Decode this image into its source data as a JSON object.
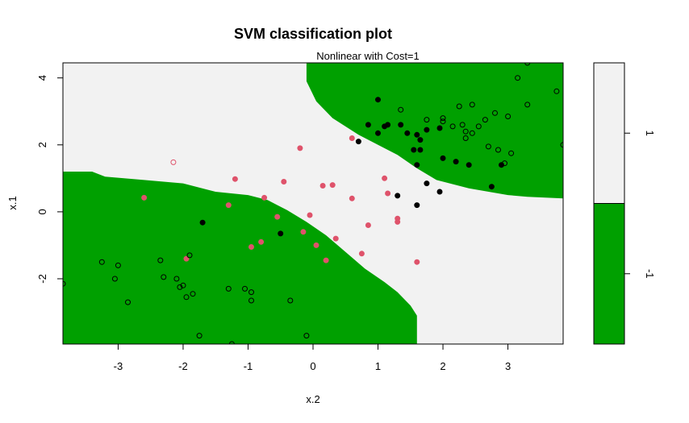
{
  "chart_data": {
    "type": "scatter",
    "title": "SVM classification plot",
    "subtitle": "Nonlinear with Cost=1",
    "xlabel": "x.2",
    "ylabel": "x.1",
    "xlim": [
      -3.85,
      3.85
    ],
    "ylim": [
      -3.95,
      4.45
    ],
    "x_ticks": [
      -3,
      -2,
      -1,
      0,
      1,
      2,
      3
    ],
    "y_ticks": [
      -2,
      0,
      2,
      4
    ],
    "region_colors": {
      "class_1": "#f2f2f2",
      "class_neg1": "#00a000"
    },
    "legend": {
      "position": "right",
      "entries": [
        {
          "label": "1",
          "color": "#f2f2f2"
        },
        {
          "label": "-1",
          "color": "#00a000"
        }
      ]
    },
    "decision_region": {
      "description": "class_1 region is polygon below, everything else is class -1",
      "class_1_polygon": [
        [
          -3.85,
          1.2
        ],
        [
          -3.4,
          1.2
        ],
        [
          -3.2,
          1.05
        ],
        [
          -2.6,
          0.95
        ],
        [
          -2.0,
          0.85
        ],
        [
          -1.5,
          0.6
        ],
        [
          -1.0,
          0.5
        ],
        [
          -0.7,
          0.35
        ],
        [
          -0.4,
          0.05
        ],
        [
          -0.1,
          -0.3
        ],
        [
          0.2,
          -0.7
        ],
        [
          0.5,
          -1.2
        ],
        [
          0.8,
          -1.7
        ],
        [
          1.1,
          -2.1
        ],
        [
          1.3,
          -2.4
        ],
        [
          1.5,
          -2.8
        ],
        [
          1.6,
          -3.1
        ],
        [
          1.6,
          -3.95
        ],
        [
          3.85,
          -3.95
        ],
        [
          3.85,
          0.4
        ],
        [
          3.3,
          0.45
        ],
        [
          3.0,
          0.5
        ],
        [
          2.4,
          0.7
        ],
        [
          1.9,
          0.95
        ],
        [
          1.6,
          1.3
        ],
        [
          1.3,
          1.7
        ],
        [
          1.0,
          2.0
        ],
        [
          0.7,
          2.3
        ],
        [
          0.3,
          2.8
        ],
        [
          0.05,
          3.3
        ],
        [
          -0.1,
          3.9
        ],
        [
          -0.1,
          4.45
        ],
        [
          -3.85,
          4.45
        ]
      ]
    },
    "series": [
      {
        "name": "support vectors class 1",
        "marker": "filled",
        "color": "#df536b",
        "points": [
          [
            -2.6,
            0.42
          ],
          [
            -1.2,
            0.98
          ],
          [
            -1.3,
            0.2
          ],
          [
            -0.75,
            0.42
          ],
          [
            -0.55,
            -0.15
          ],
          [
            -0.45,
            0.9
          ],
          [
            -0.2,
            1.9
          ],
          [
            -0.15,
            -0.6
          ],
          [
            -0.05,
            -0.1
          ],
          [
            0.15,
            0.78
          ],
          [
            0.3,
            0.8
          ],
          [
            0.35,
            -0.8
          ],
          [
            0.6,
            2.2
          ],
          [
            0.6,
            0.4
          ],
          [
            0.75,
            -1.25
          ],
          [
            0.85,
            -0.4
          ],
          [
            1.1,
            1.0
          ],
          [
            1.15,
            0.55
          ],
          [
            1.3,
            -0.2
          ],
          [
            1.3,
            -0.3
          ],
          [
            1.6,
            -1.5
          ],
          [
            -0.8,
            -0.9
          ],
          [
            -0.95,
            -1.05
          ],
          [
            -1.95,
            -1.4
          ],
          [
            0.05,
            -1.0
          ],
          [
            0.2,
            -1.45
          ]
        ]
      },
      {
        "name": "data class 1",
        "marker": "open",
        "color": "#df536b",
        "points": [
          [
            -2.15,
            1.48
          ]
        ]
      },
      {
        "name": "support vectors class -1",
        "marker": "filled",
        "color": "#000000",
        "points": [
          [
            -1.7,
            -0.32
          ],
          [
            -0.5,
            -0.65
          ],
          [
            0.7,
            2.1
          ],
          [
            0.85,
            2.6
          ],
          [
            1.0,
            2.35
          ],
          [
            1.0,
            3.35
          ],
          [
            1.1,
            2.55
          ],
          [
            1.15,
            2.6
          ],
          [
            1.35,
            2.6
          ],
          [
            1.45,
            2.35
          ],
          [
            1.55,
            1.85
          ],
          [
            1.6,
            2.3
          ],
          [
            1.65,
            2.15
          ],
          [
            1.65,
            1.85
          ],
          [
            1.75,
            2.45
          ],
          [
            1.6,
            1.4
          ],
          [
            1.75,
            0.85
          ],
          [
            1.95,
            0.6
          ],
          [
            1.3,
            0.48
          ],
          [
            1.6,
            0.2
          ],
          [
            1.95,
            2.5
          ],
          [
            2.2,
            1.5
          ],
          [
            2.4,
            1.4
          ],
          [
            2.9,
            1.4
          ],
          [
            2.75,
            0.75
          ],
          [
            2.0,
            1.6
          ]
        ]
      },
      {
        "name": "data class -1",
        "marker": "open",
        "color": "#000000",
        "points": [
          [
            -3.25,
            -1.5
          ],
          [
            -3.0,
            -1.6
          ],
          [
            -3.05,
            -2.0
          ],
          [
            -2.85,
            -2.7
          ],
          [
            -2.35,
            -1.45
          ],
          [
            -2.3,
            -1.95
          ],
          [
            -2.1,
            -2.0
          ],
          [
            -2.05,
            -2.25
          ],
          [
            -2.0,
            -2.2
          ],
          [
            -1.95,
            -2.55
          ],
          [
            -1.9,
            -1.3
          ],
          [
            -1.85,
            -2.45
          ],
          [
            -1.75,
            -3.7
          ],
          [
            -1.3,
            -2.3
          ],
          [
            -1.25,
            -3.95
          ],
          [
            -1.05,
            -2.3
          ],
          [
            -0.95,
            -2.65
          ],
          [
            -0.95,
            -2.4
          ],
          [
            -0.35,
            -2.65
          ],
          [
            -0.1,
            -3.7
          ],
          [
            1.35,
            3.05
          ],
          [
            1.75,
            2.75
          ],
          [
            2.0,
            2.7
          ],
          [
            2.0,
            2.8
          ],
          [
            2.15,
            2.55
          ],
          [
            2.25,
            3.15
          ],
          [
            2.3,
            2.6
          ],
          [
            2.35,
            2.2
          ],
          [
            2.35,
            2.4
          ],
          [
            2.45,
            2.35
          ],
          [
            2.45,
            3.2
          ],
          [
            2.55,
            2.55
          ],
          [
            2.65,
            2.75
          ],
          [
            2.7,
            1.95
          ],
          [
            2.8,
            2.95
          ],
          [
            2.85,
            1.85
          ],
          [
            2.95,
            1.45
          ],
          [
            3.0,
            2.85
          ],
          [
            3.05,
            1.75
          ],
          [
            3.15,
            4.0
          ],
          [
            3.3,
            3.2
          ],
          [
            3.75,
            3.6
          ],
          [
            3.85,
            2.0
          ],
          [
            3.3,
            4.45
          ],
          [
            -3.85,
            -2.15
          ]
        ]
      }
    ]
  }
}
